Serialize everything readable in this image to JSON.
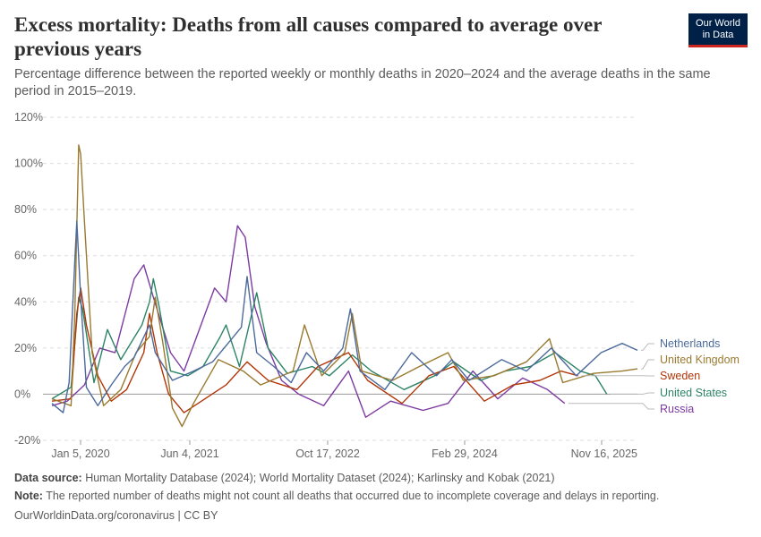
{
  "title": "Excess mortality: Deaths from all causes compared to average over previous years",
  "subtitle": "Percentage difference between the reported weekly or monthly deaths in 2020–2024 and the average deaths in the same period in 2015–2019.",
  "logo": {
    "line1": "Our World",
    "line2": "in Data"
  },
  "footer": {
    "source_label": "Data source:",
    "source_text": " Human Mortality Database (2024); World Mortality Dataset (2024); Karlinsky and Kobak (2021)",
    "note_label": "Note:",
    "note_text": " The reported number of deaths might not count all deaths that occurred due to incomplete coverage and delays in reporting.",
    "credit": "OurWorldinData.org/coronavirus | CC BY"
  },
  "colors": {
    "netherlands": "#4c6a9c",
    "united_kingdom": "#9a7a30",
    "sweden": "#b13507",
    "united_states": "#2c8465",
    "russia": "#883039",
    "russia_line": "#7d3ba1",
    "grid": "#dddddd",
    "zero_line": "#9a9a9a"
  },
  "chart_data": {
    "type": "line",
    "x_axis": {
      "ticks": [
        "Jan 5, 2020",
        "Jun 4, 2021",
        "Oct 17, 2022",
        "Feb 29, 2024",
        "Nov 16, 2025"
      ],
      "range": [
        "2020-01-05",
        "2025-11-16"
      ]
    },
    "y_axis": {
      "ticks": [
        "-20%",
        "0%",
        "20%",
        "40%",
        "60%",
        "80%",
        "100%",
        "120%"
      ],
      "range": [
        -20,
        120
      ],
      "unit": "%"
    },
    "grid": true,
    "legend_placement": "right",
    "series": [
      {
        "name": "Netherlands",
        "color": "#4c6a9c",
        "points": [
          [
            "2020-01-05",
            -4
          ],
          [
            "2020-02-15",
            -8
          ],
          [
            "2020-03-08",
            5
          ],
          [
            "2020-03-29",
            58
          ],
          [
            "2020-04-05",
            75
          ],
          [
            "2020-04-19",
            42
          ],
          [
            "2020-05-10",
            3
          ],
          [
            "2020-06-21",
            -5
          ],
          [
            "2020-08-09",
            4
          ],
          [
            "2020-09-27",
            12
          ],
          [
            "2020-11-01",
            16
          ],
          [
            "2020-12-27",
            30
          ],
          [
            "2021-01-17",
            18
          ],
          [
            "2021-03-21",
            6
          ],
          [
            "2021-06-06",
            10
          ],
          [
            "2021-08-15",
            14
          ],
          [
            "2021-10-10",
            22
          ],
          [
            "2021-11-28",
            29
          ],
          [
            "2021-12-19",
            51
          ],
          [
            "2022-01-23",
            18
          ],
          [
            "2022-03-27",
            12
          ],
          [
            "2022-05-29",
            5
          ],
          [
            "2022-07-24",
            18
          ],
          [
            "2022-09-25",
            10
          ],
          [
            "2022-12-04",
            20
          ],
          [
            "2023-01-01",
            37
          ],
          [
            "2023-02-05",
            10
          ],
          [
            "2023-05-07",
            2
          ],
          [
            "2023-08-13",
            18
          ],
          [
            "2023-11-12",
            8
          ],
          [
            "2024-01-07",
            15
          ],
          [
            "2024-03-10",
            6
          ],
          [
            "2024-07-07",
            15
          ],
          [
            "2024-10-06",
            10
          ],
          [
            "2025-01-05",
            20
          ],
          [
            "2025-04-06",
            8
          ],
          [
            "2025-07-06",
            18
          ],
          [
            "2025-09-21",
            22
          ],
          [
            "2025-11-16",
            19
          ]
        ]
      },
      {
        "name": "United Kingdom",
        "color": "#9a7a30",
        "points": [
          [
            "2020-01-05",
            -2
          ],
          [
            "2020-03-15",
            -5
          ],
          [
            "2020-03-29",
            35
          ],
          [
            "2020-04-12",
            108
          ],
          [
            "2020-04-19",
            104
          ],
          [
            "2020-05-03",
            75
          ],
          [
            "2020-05-31",
            18
          ],
          [
            "2020-07-12",
            -5
          ],
          [
            "2020-09-13",
            2
          ],
          [
            "2020-11-08",
            18
          ],
          [
            "2020-12-27",
            25
          ],
          [
            "2021-01-17",
            42
          ],
          [
            "2021-02-14",
            22
          ],
          [
            "2021-03-21",
            -6
          ],
          [
            "2021-04-25",
            -14
          ],
          [
            "2021-06-06",
            -4
          ],
          [
            "2021-09-05",
            15
          ],
          [
            "2021-12-05",
            10
          ],
          [
            "2022-02-06",
            4
          ],
          [
            "2022-06-05",
            10
          ],
          [
            "2022-07-17",
            30
          ],
          [
            "2022-09-18",
            8
          ],
          [
            "2022-12-11",
            18
          ],
          [
            "2023-01-08",
            35
          ],
          [
            "2023-02-12",
            10
          ],
          [
            "2023-06-04",
            6
          ],
          [
            "2023-09-10",
            12
          ],
          [
            "2023-12-24",
            18
          ],
          [
            "2024-02-18",
            6
          ],
          [
            "2024-06-09",
            8
          ],
          [
            "2024-10-06",
            14
          ],
          [
            "2024-12-29",
            24
          ],
          [
            "2025-02-16",
            5
          ],
          [
            "2025-06-08",
            9
          ],
          [
            "2025-09-21",
            10
          ],
          [
            "2025-11-16",
            11
          ]
        ]
      },
      {
        "name": "Sweden",
        "color": "#b13507",
        "points": [
          [
            "2020-01-05",
            -3
          ],
          [
            "2020-03-15",
            -2
          ],
          [
            "2020-04-05",
            35
          ],
          [
            "2020-04-19",
            46
          ],
          [
            "2020-05-10",
            30
          ],
          [
            "2020-06-21",
            8
          ],
          [
            "2020-08-09",
            -3
          ],
          [
            "2020-10-04",
            2
          ],
          [
            "2020-12-06",
            18
          ],
          [
            "2020-12-27",
            35
          ],
          [
            "2021-01-24",
            18
          ],
          [
            "2021-03-07",
            0
          ],
          [
            "2021-05-02",
            -8
          ],
          [
            "2021-07-18",
            -2
          ],
          [
            "2021-10-03",
            4
          ],
          [
            "2021-12-19",
            14
          ],
          [
            "2022-03-06",
            6
          ],
          [
            "2022-06-19",
            2
          ],
          [
            "2022-09-04",
            12
          ],
          [
            "2022-12-25",
            18
          ],
          [
            "2023-03-05",
            6
          ],
          [
            "2023-07-09",
            -4
          ],
          [
            "2023-10-15",
            8
          ],
          [
            "2024-01-14",
            12
          ],
          [
            "2024-05-05",
            -3
          ],
          [
            "2024-08-18",
            4
          ],
          [
            "2024-11-24",
            6
          ],
          [
            "2025-02-09",
            10
          ],
          [
            "2025-04-13",
            8
          ]
        ]
      },
      {
        "name": "United States",
        "color": "#2c8465",
        "points": [
          [
            "2020-01-05",
            -2
          ],
          [
            "2020-03-15",
            3
          ],
          [
            "2020-04-12",
            42
          ],
          [
            "2020-04-26",
            37
          ],
          [
            "2020-06-07",
            5
          ],
          [
            "2020-07-26",
            28
          ],
          [
            "2020-09-13",
            15
          ],
          [
            "2020-11-29",
            30
          ],
          [
            "2020-12-27",
            40
          ],
          [
            "2021-01-10",
            50
          ],
          [
            "2021-01-31",
            38
          ],
          [
            "2021-03-14",
            10
          ],
          [
            "2021-05-16",
            8
          ],
          [
            "2021-07-11",
            12
          ],
          [
            "2021-09-12",
            25
          ],
          [
            "2021-10-03",
            30
          ],
          [
            "2021-11-21",
            12
          ],
          [
            "2022-01-23",
            44
          ],
          [
            "2022-03-06",
            20
          ],
          [
            "2022-05-15",
            9
          ],
          [
            "2022-08-14",
            12
          ],
          [
            "2022-10-16",
            8
          ],
          [
            "2023-01-08",
            17
          ],
          [
            "2023-03-19",
            10
          ],
          [
            "2023-07-16",
            2
          ],
          [
            "2023-11-05",
            8
          ],
          [
            "2024-01-14",
            14
          ],
          [
            "2024-04-21",
            6
          ],
          [
            "2024-07-21",
            10
          ],
          [
            "2024-10-20",
            12
          ],
          [
            "2025-01-19",
            18
          ],
          [
            "2025-04-20",
            10
          ],
          [
            "2025-06-15",
            8
          ],
          [
            "2025-07-27",
            0
          ]
        ]
      },
      {
        "name": "Russia",
        "color": "#7d3ba1",
        "points": [
          [
            "2020-01-05",
            -5
          ],
          [
            "2020-03-01",
            -3
          ],
          [
            "2020-05-03",
            4
          ],
          [
            "2020-06-28",
            20
          ],
          [
            "2020-08-23",
            18
          ],
          [
            "2020-11-01",
            50
          ],
          [
            "2020-12-06",
            56
          ],
          [
            "2021-01-10",
            42
          ],
          [
            "2021-03-14",
            18
          ],
          [
            "2021-05-02",
            10
          ],
          [
            "2021-06-27",
            28
          ],
          [
            "2021-08-22",
            46
          ],
          [
            "2021-10-03",
            40
          ],
          [
            "2021-11-14",
            73
          ],
          [
            "2021-12-12",
            68
          ],
          [
            "2022-01-16",
            38
          ],
          [
            "2022-02-27",
            22
          ],
          [
            "2022-04-24",
            6
          ],
          [
            "2022-06-26",
            0
          ],
          [
            "2022-09-25",
            -5
          ],
          [
            "2022-12-25",
            10
          ],
          [
            "2023-02-26",
            -10
          ],
          [
            "2023-05-28",
            -3
          ],
          [
            "2023-09-24",
            -7
          ],
          [
            "2023-12-24",
            -4
          ],
          [
            "2024-03-24",
            10
          ],
          [
            "2024-06-23",
            -2
          ],
          [
            "2024-09-22",
            7
          ],
          [
            "2024-12-22",
            2
          ],
          [
            "2025-02-23",
            -4
          ]
        ]
      }
    ]
  }
}
